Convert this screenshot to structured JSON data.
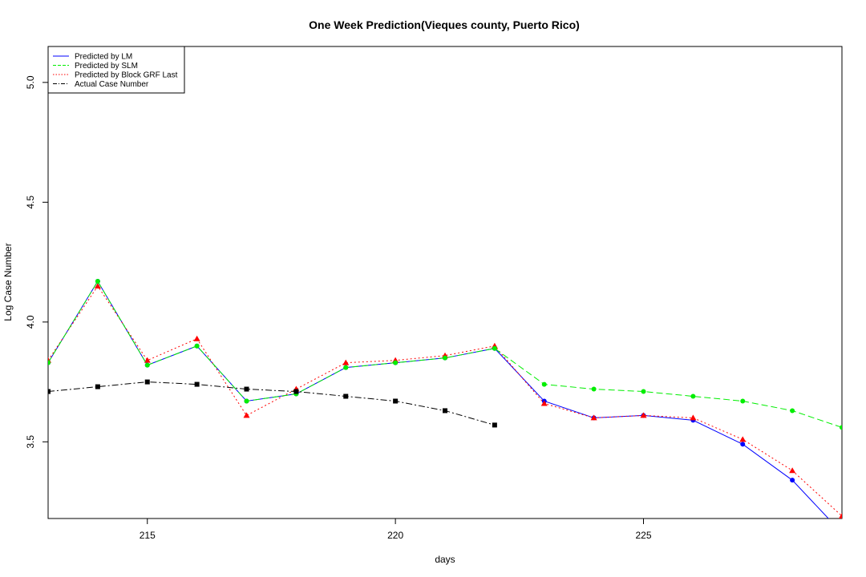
{
  "chart_data": {
    "type": "line",
    "title": "One Week Prediction(Vieques county, Puerto Rico)",
    "xlabel": "days",
    "ylabel": "Log Case Number",
    "xlim": [
      213,
      229
    ],
    "ylim": [
      3.18,
      5.15
    ],
    "xticks": [
      215,
      220,
      225
    ],
    "yticks": [
      3.5,
      4.0,
      4.5,
      5.0
    ],
    "xtick_labels": [
      "215",
      "220",
      "225"
    ],
    "ytick_labels": [
      "3.5",
      "4.0",
      "4.5",
      "5.0"
    ],
    "grid": false,
    "legend_position": "top-left",
    "series": [
      {
        "name": "Predicted by LM",
        "color": "#0000ff",
        "line": "solid",
        "marker": "circle",
        "x": [
          213,
          214,
          215,
          216,
          217,
          218,
          219,
          220,
          221,
          222,
          223,
          224,
          225,
          226,
          227,
          228,
          229
        ],
        "y": [
          3.83,
          4.17,
          3.82,
          3.9,
          3.67,
          3.7,
          3.81,
          3.83,
          3.85,
          3.89,
          3.67,
          3.6,
          3.61,
          3.59,
          3.49,
          3.34,
          3.12
        ]
      },
      {
        "name": "Predicted by SLM",
        "color": "#00ee00",
        "line": "dashed",
        "marker": "circle",
        "x": [
          213,
          214,
          215,
          216,
          217,
          218,
          219,
          220,
          221,
          222,
          223,
          224,
          225,
          226,
          227,
          228,
          229
        ],
        "y": [
          3.83,
          4.17,
          3.82,
          3.9,
          3.67,
          3.7,
          3.81,
          3.83,
          3.85,
          3.89,
          3.74,
          3.72,
          3.71,
          3.69,
          3.67,
          3.63,
          3.56
        ]
      },
      {
        "name": "Predicted by Block GRF Last",
        "color": "#ff0000",
        "line": "dotted",
        "marker": "triangle",
        "x": [
          213,
          214,
          215,
          216,
          217,
          218,
          219,
          220,
          221,
          222,
          223,
          224,
          225,
          226,
          227,
          228,
          229
        ],
        "y": [
          3.84,
          4.15,
          3.84,
          3.93,
          3.61,
          3.72,
          3.83,
          3.84,
          3.86,
          3.9,
          3.66,
          3.6,
          3.61,
          3.6,
          3.51,
          3.38,
          3.19
        ]
      },
      {
        "name": "Actual Case Number",
        "color": "#000000",
        "line": "dashdot",
        "marker": "square",
        "x": [
          213,
          214,
          215,
          216,
          217,
          218,
          219,
          220,
          221,
          222
        ],
        "y": [
          3.71,
          3.73,
          3.75,
          3.74,
          3.72,
          3.71,
          3.69,
          3.67,
          3.63,
          3.57
        ]
      }
    ]
  }
}
